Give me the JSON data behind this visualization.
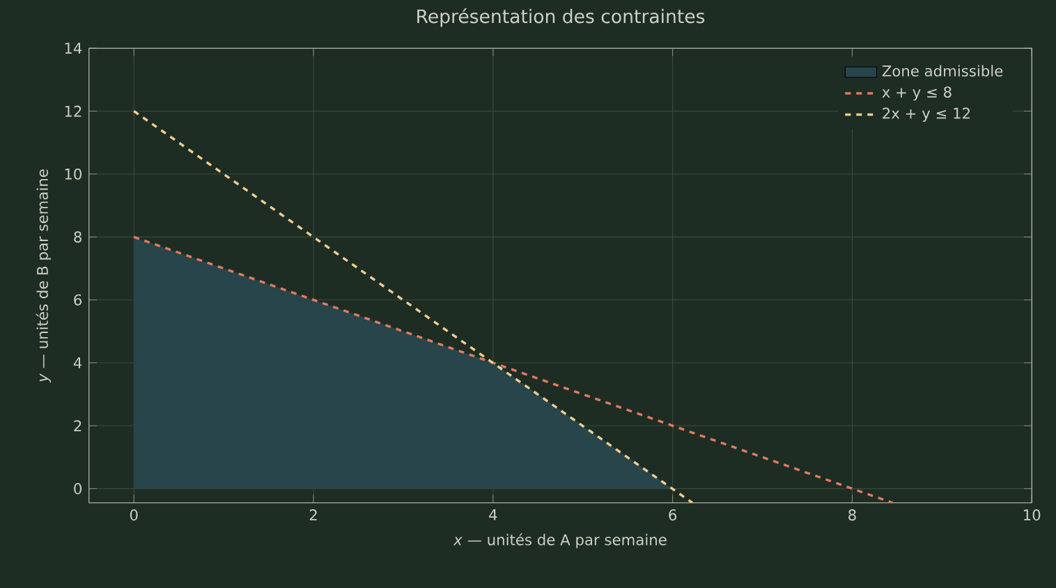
{
  "chart_data": {
    "type": "line",
    "title": "Représentation des contraintes",
    "xlabel": "*x* — unités de A par semaine",
    "ylabel": "*y* — unités de B par semaine",
    "xlim": [
      -0.5,
      10
    ],
    "ylim": [
      -0.45,
      14
    ],
    "xticks": [
      0,
      2,
      4,
      6,
      8,
      10
    ],
    "yticks": [
      0,
      2,
      4,
      6,
      8,
      10,
      12,
      14
    ],
    "grid": true,
    "legend": "top right",
    "series": [
      {
        "name": "Zone admissible",
        "type": "area",
        "color": "#27454a",
        "x": [
          0,
          0,
          4,
          6
        ],
        "values": [
          0,
          8,
          4,
          0
        ]
      },
      {
        "name": "x + y ≤ 8",
        "color": "#e07a5f",
        "line_style": "dashed",
        "x": [
          0,
          8.45
        ],
        "values": [
          8,
          -0.45
        ]
      },
      {
        "name": "2x + y ≤ 12",
        "color": "#f2cc8f",
        "line_style": "dashed",
        "x": [
          0,
          6.22
        ],
        "values": [
          12,
          -0.45
        ]
      }
    ]
  }
}
